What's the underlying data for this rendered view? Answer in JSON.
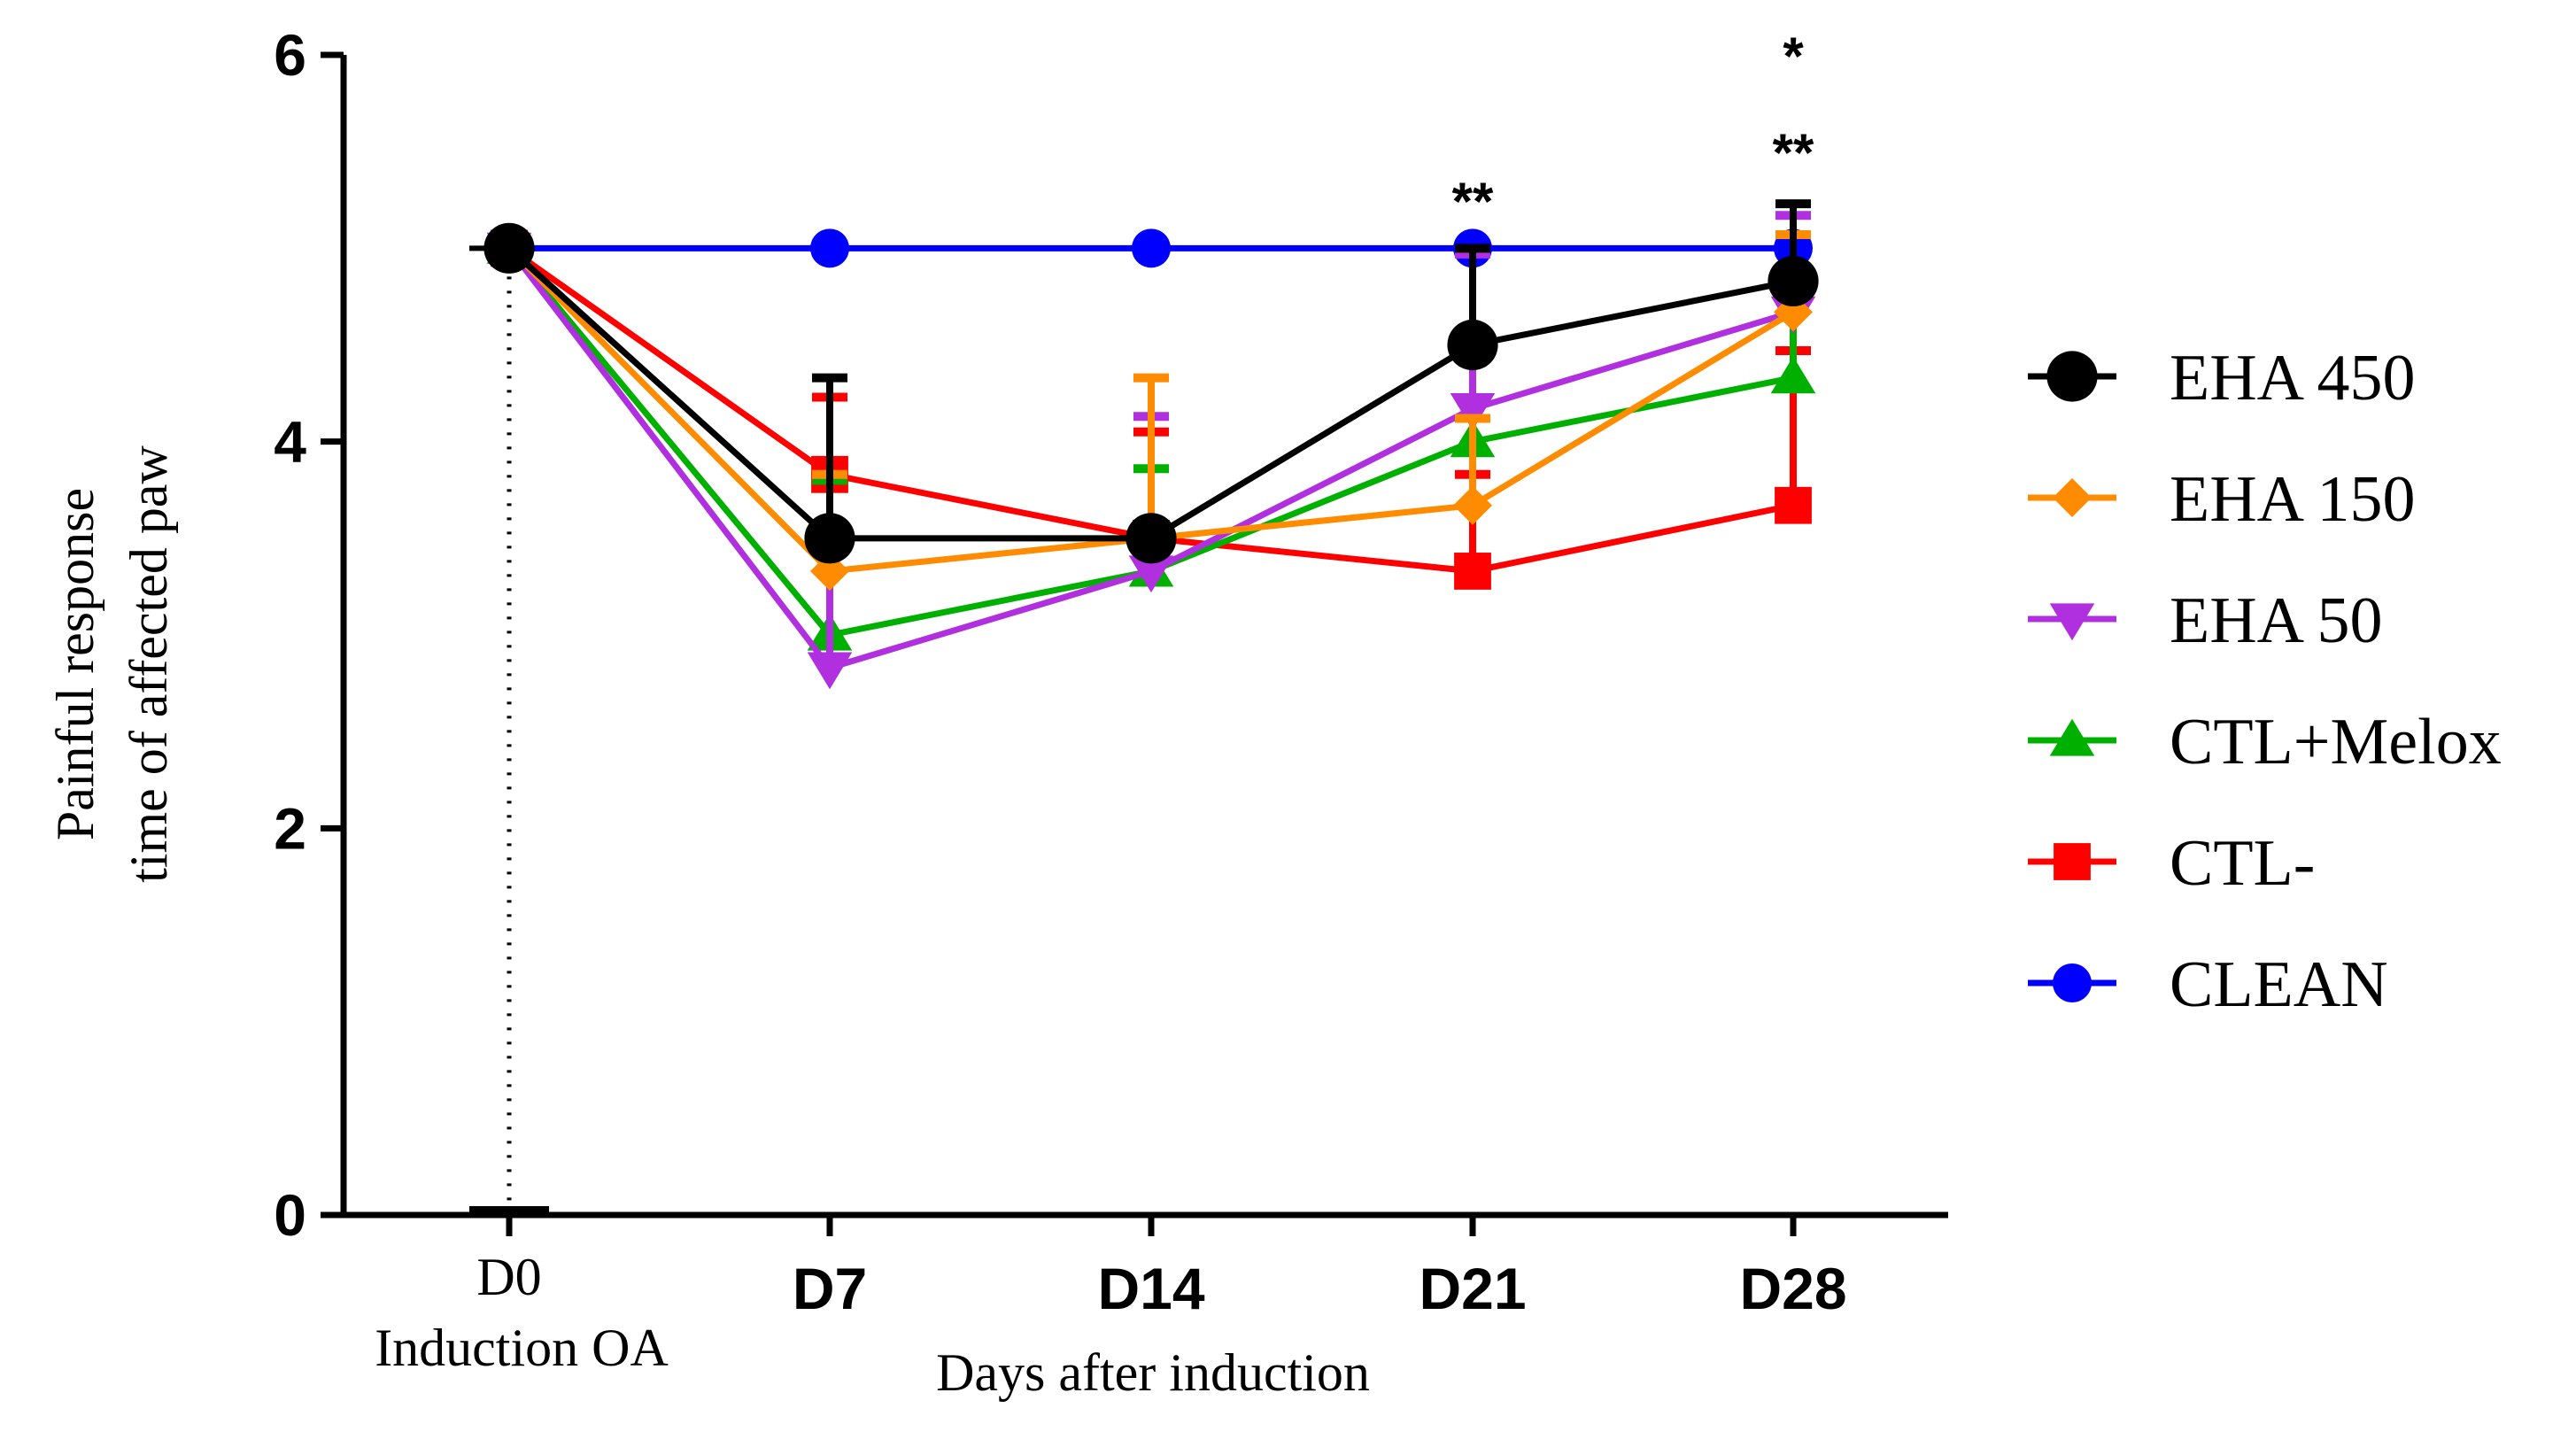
{
  "chart_data": {
    "type": "line",
    "xlabel": "Days after induction",
    "ylabel_lines": [
      "Painful response",
      "time of affected paw"
    ],
    "ylim": [
      0,
      6
    ],
    "yticks": [
      0,
      2,
      4,
      6
    ],
    "x_categories": [
      "D0",
      "D7",
      "D14",
      "D21",
      "D28"
    ],
    "x_sublabel_d0": "Induction OA",
    "grid": false,
    "legend_position": "right",
    "series": [
      {
        "name": "EHA 450",
        "color": "#000000",
        "marker": "circle",
        "values": [
          5.0,
          3.5,
          3.5,
          4.5,
          4.83
        ],
        "errors_up": [
          0,
          0.83,
          0,
          0.5,
          0.4
        ]
      },
      {
        "name": "EHA 150",
        "color": "#FF8C00",
        "marker": "diamond",
        "values": [
          5.0,
          3.33,
          3.5,
          3.67,
          4.67
        ],
        "errors_up": [
          0,
          0.5,
          0.83,
          0.45,
          0.4
        ]
      },
      {
        "name": "EHA 50",
        "color": "#B030E0",
        "marker": "triangle-down",
        "values": [
          5.0,
          2.83,
          3.33,
          4.17,
          4.67
        ],
        "errors_up": [
          0,
          1.0,
          0.8,
          0.8,
          0.5
        ]
      },
      {
        "name": "CTL+Melox",
        "color": "#00B000",
        "marker": "triangle-up",
        "values": [
          5.0,
          3.0,
          3.33,
          4.0,
          4.33
        ],
        "errors_up": [
          0,
          0.8,
          0.53,
          0.5,
          0.5
        ]
      },
      {
        "name": "CTL-",
        "color": "#FF0000",
        "marker": "square",
        "values": [
          5.0,
          3.83,
          3.5,
          3.33,
          3.67
        ],
        "errors_up": [
          0,
          0.4,
          0.55,
          0.5,
          0.8
        ]
      },
      {
        "name": "CLEAN",
        "color": "#0000FF",
        "marker": "circle-small",
        "values": [
          5.0,
          5.0,
          5.0,
          5.0,
          5.0
        ],
        "errors_up": [
          0,
          0,
          0,
          0,
          0
        ]
      }
    ],
    "annotations": [
      {
        "x": "D21",
        "y": 5.25,
        "text": "**"
      },
      {
        "x": "D28",
        "y": 5.5,
        "text": "**"
      },
      {
        "x": "D28",
        "y": 6.0,
        "text": "*"
      }
    ]
  }
}
